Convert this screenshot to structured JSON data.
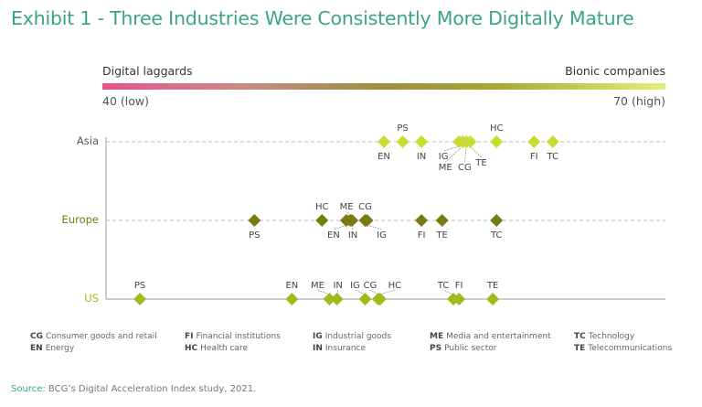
{
  "title": "Exhibit 1 - Three Industries Were Consistently More Digitally Mature",
  "chart_data": {
    "type": "scatter",
    "title": "Exhibit 1 - Three Industries Were Consistently More Digitally Mature",
    "scale": {
      "left_label": "Digital laggards",
      "right_label": "Bionic companies",
      "min_label": "40 (low)",
      "max_label": "70 (high)",
      "xlim": [
        40,
        70
      ]
    },
    "grid": false,
    "series": [
      {
        "name": "Asia",
        "color": "#c8dc35",
        "label_color": "#555555",
        "points": [
          {
            "code": "EN",
            "x": 55.0,
            "label": "below"
          },
          {
            "code": "PS",
            "x": 56.0,
            "label": "above"
          },
          {
            "code": "IN",
            "x": 57.0,
            "label": "below"
          },
          {
            "code": "IG",
            "x": 59.0,
            "label": "below"
          },
          {
            "code": "ME",
            "x": 59.2,
            "label": "below"
          },
          {
            "code": "CG",
            "x": 59.4,
            "label": "below"
          },
          {
            "code": "TE",
            "x": 59.6,
            "label": "below"
          },
          {
            "code": "HC",
            "x": 61.0,
            "label": "above"
          },
          {
            "code": "FI",
            "x": 63.0,
            "label": "below"
          },
          {
            "code": "TC",
            "x": 64.0,
            "label": "below"
          }
        ]
      },
      {
        "name": "Europe",
        "color": "#7a7a12",
        "label_color": "#7a7a12",
        "points": [
          {
            "code": "PS",
            "x": 48.1,
            "label": "below"
          },
          {
            "code": "HC",
            "x": 51.7,
            "label": "above"
          },
          {
            "code": "EN",
            "x": 53.0,
            "label": "below"
          },
          {
            "code": "ME",
            "x": 53.2,
            "label": "above"
          },
          {
            "code": "IN",
            "x": 53.3,
            "label": "below"
          },
          {
            "code": "CG",
            "x": 54.0,
            "label": "above"
          },
          {
            "code": "IG",
            "x": 54.1,
            "label": "below"
          },
          {
            "code": "FI",
            "x": 57.0,
            "label": "below"
          },
          {
            "code": "TE",
            "x": 58.1,
            "label": "below"
          },
          {
            "code": "TC",
            "x": 61.0,
            "label": "below"
          }
        ]
      },
      {
        "name": "US",
        "color": "#a2b81c",
        "label_color": "#a2b81c",
        "points": [
          {
            "code": "PS",
            "x": 42.0,
            "label": "above"
          },
          {
            "code": "EN",
            "x": 50.1,
            "label": "above"
          },
          {
            "code": "ME",
            "x": 52.1,
            "label": "above"
          },
          {
            "code": "IN",
            "x": 52.5,
            "label": "above"
          },
          {
            "code": "IG",
            "x": 54.0,
            "label": "above"
          },
          {
            "code": "CG",
            "x": 54.7,
            "label": "above"
          },
          {
            "code": "HC",
            "x": 54.8,
            "label": "above"
          },
          {
            "code": "TC",
            "x": 58.7,
            "label": "above"
          },
          {
            "code": "FI",
            "x": 59.0,
            "label": "above"
          },
          {
            "code": "TE",
            "x": 60.8,
            "label": "above"
          }
        ]
      }
    ]
  },
  "legend": [
    [
      {
        "code": "CG",
        "name": "Consumer goods and retail"
      },
      {
        "code": "EN",
        "name": "Energy"
      }
    ],
    [
      {
        "code": "FI",
        "name": "Financial institutions"
      },
      {
        "code": "HC",
        "name": "Health care"
      }
    ],
    [
      {
        "code": "IG",
        "name": "Industrial goods"
      },
      {
        "code": "IN",
        "name": "Insurance"
      }
    ],
    [
      {
        "code": "ME",
        "name": "Media and entertainment"
      },
      {
        "code": "PS",
        "name": "Public sector"
      }
    ],
    [
      {
        "code": "TC",
        "name": "Technology"
      },
      {
        "code": "TE",
        "name": "Telecommunications"
      }
    ]
  ],
  "source": {
    "label": "Source:",
    "text": " BCG’s Digital Acceleration Index study, 2021."
  }
}
